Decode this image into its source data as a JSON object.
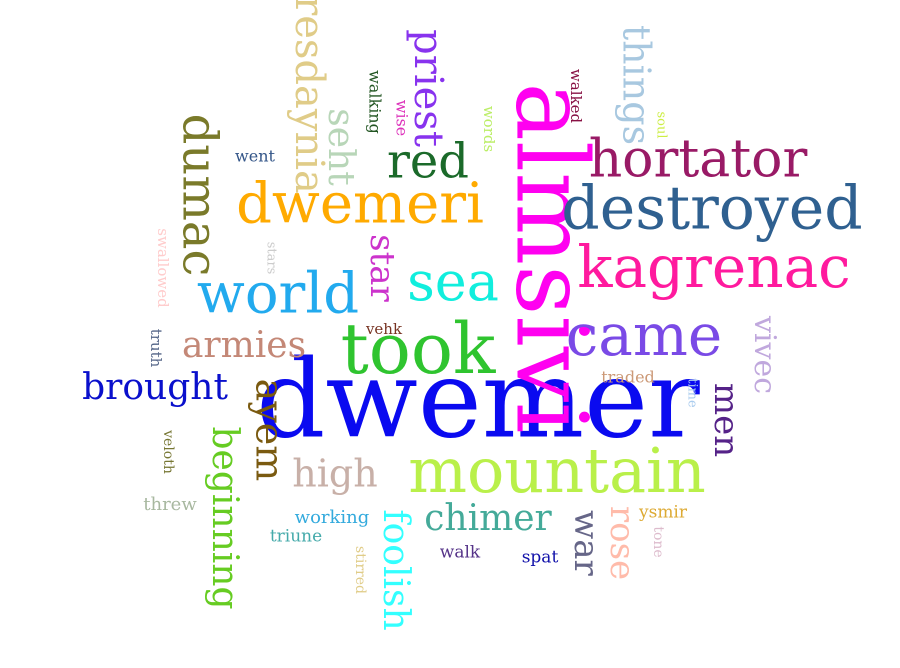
{
  "words": [
    {
      "text": "dwemer",
      "color": "#0a0af0"
    },
    {
      "text": "almsivi",
      "color": "#ff00f0"
    },
    {
      "text": "took",
      "color": "#2fc42f"
    },
    {
      "text": "mountain",
      "color": "#b9f04a"
    },
    {
      "text": "came",
      "color": "#7a4ae6"
    },
    {
      "text": "destroyed",
      "color": "#2f6090"
    },
    {
      "text": "kagrenac",
      "color": "#ff1a9e"
    },
    {
      "text": "dwemeri",
      "color": "#ffaa00"
    },
    {
      "text": "world",
      "color": "#22aaee"
    },
    {
      "text": "sea",
      "color": "#11eedd"
    },
    {
      "text": "hortator",
      "color": "#991a66"
    },
    {
      "text": "red",
      "color": "#1b6a2a"
    },
    {
      "text": "dumac",
      "color": "#7a7a2a"
    },
    {
      "text": "resdaynia",
      "color": "#e0cc88"
    },
    {
      "text": "priest",
      "color": "#8833ee"
    },
    {
      "text": "things",
      "color": "#a8c8e0"
    },
    {
      "text": "seht",
      "color": "#b8d6b8"
    },
    {
      "text": "star",
      "color": "#cc33cc"
    },
    {
      "text": "armies",
      "color": "#c48877"
    },
    {
      "text": "brought",
      "color": "#0a10cc"
    },
    {
      "text": "ayem",
      "color": "#7a5a10"
    },
    {
      "text": "beginning",
      "color": "#66cc22"
    },
    {
      "text": "high",
      "color": "#c8b0a8"
    },
    {
      "text": "chimer",
      "color": "#44aa99"
    },
    {
      "text": "foolish",
      "color": "#33ffff"
    },
    {
      "text": "war",
      "color": "#666688"
    },
    {
      "text": "rose",
      "color": "#ffbbaa"
    },
    {
      "text": "men",
      "color": "#552288"
    },
    {
      "text": "vivec",
      "color": "#c0a8dd"
    },
    {
      "text": "went",
      "color": "#335588"
    },
    {
      "text": "walking",
      "color": "#225522"
    },
    {
      "text": "wise",
      "color": "#dd33bb"
    },
    {
      "text": "words",
      "color": "#bbee66"
    },
    {
      "text": "walked",
      "color": "#881144"
    },
    {
      "text": "soul",
      "color": "#ccee44"
    },
    {
      "text": "stars",
      "color": "#cccccc"
    },
    {
      "text": "swallowed",
      "color": "#ffcccc"
    },
    {
      "text": "truth",
      "color": "#556688"
    },
    {
      "text": "vehk",
      "color": "#773322"
    },
    {
      "text": "traded",
      "color": "#cc9977"
    },
    {
      "text": "time",
      "color": "#aaccee"
    },
    {
      "text": "veloth",
      "color": "#777733"
    },
    {
      "text": "threw",
      "color": "#a8b8a0"
    },
    {
      "text": "working",
      "color": "#33aadd"
    },
    {
      "text": "triune",
      "color": "#44aaaa"
    },
    {
      "text": "stirred",
      "color": "#e0cc88"
    },
    {
      "text": "walk",
      "color": "#553388"
    },
    {
      "text": "spat",
      "color": "#1111aa"
    },
    {
      "text": "ysmir",
      "color": "#ddaa33"
    },
    {
      "text": "tone",
      "color": "#ddbbcc"
    }
  ]
}
